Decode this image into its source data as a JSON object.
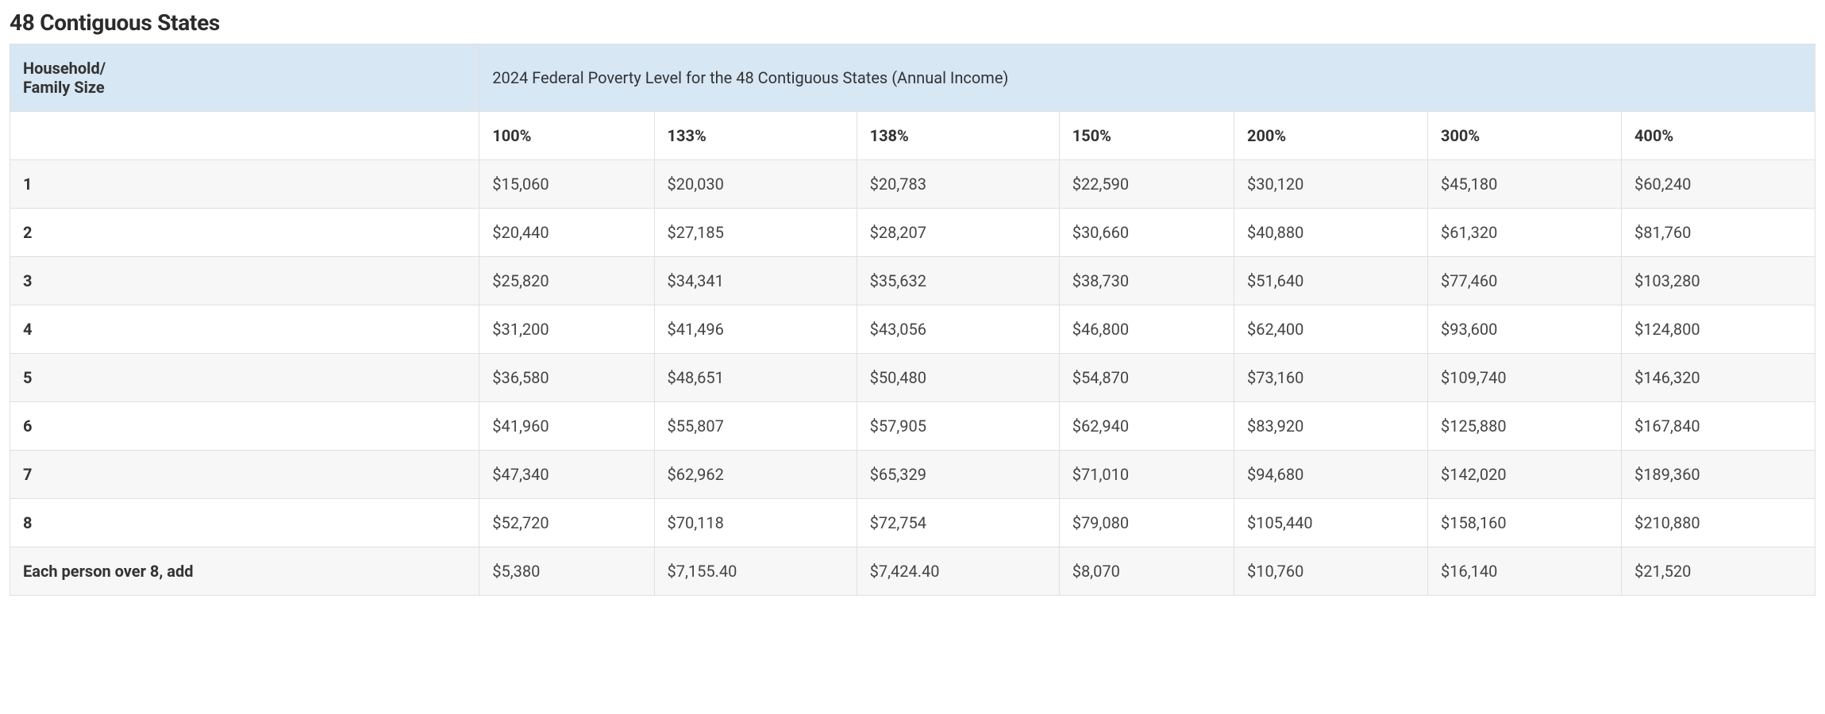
{
  "title": "48 Contiguous States",
  "table": {
    "type": "table",
    "header_bg": "#d7e7f4",
    "border_color": "#e0e0e0",
    "row_alt_bg": "#f7f7f7",
    "row_bg": "#ffffff",
    "text_color": "#333333",
    "columns_first_label_line1": "Household/",
    "columns_first_label_line2": "Family Size",
    "subtitle": "2024 Federal Poverty Level for the 48 Contiguous States (Annual Income)",
    "percent_headers": [
      "100%",
      "133%",
      "138%",
      "150%",
      "200%",
      "300%",
      "400%"
    ],
    "rows": [
      {
        "label": "1",
        "cells": [
          "$15,060",
          "$20,030",
          "$20,783",
          "$22,590",
          "$30,120",
          "$45,180",
          "$60,240"
        ]
      },
      {
        "label": "2",
        "cells": [
          "$20,440",
          "$27,185",
          "$28,207",
          "$30,660",
          "$40,880",
          "$61,320",
          "$81,760"
        ]
      },
      {
        "label": "3",
        "cells": [
          "$25,820",
          "$34,341",
          "$35,632",
          "$38,730",
          "$51,640",
          "$77,460",
          "$103,280"
        ]
      },
      {
        "label": "4",
        "cells": [
          "$31,200",
          "$41,496",
          "$43,056",
          "$46,800",
          "$62,400",
          "$93,600",
          "$124,800"
        ]
      },
      {
        "label": "5",
        "cells": [
          "$36,580",
          "$48,651",
          "$50,480",
          "$54,870",
          "$73,160",
          "$109,740",
          "$146,320"
        ]
      },
      {
        "label": "6",
        "cells": [
          "$41,960",
          "$55,807",
          "$57,905",
          "$62,940",
          "$83,920",
          "$125,880",
          "$167,840"
        ]
      },
      {
        "label": "7",
        "cells": [
          "$47,340",
          "$62,962",
          "$65,329",
          "$71,010",
          "$94,680",
          "$142,020",
          "$189,360"
        ]
      },
      {
        "label": "8",
        "cells": [
          "$52,720",
          "$70,118",
          "$72,754",
          "$79,080",
          "$105,440",
          "$158,160",
          "$210,880"
        ]
      },
      {
        "label": "Each person over 8, add",
        "cells": [
          "$5,380",
          "$7,155.40",
          "$7,424.40",
          "$8,070",
          "$10,760",
          "$16,140",
          "$21,520"
        ]
      }
    ]
  }
}
